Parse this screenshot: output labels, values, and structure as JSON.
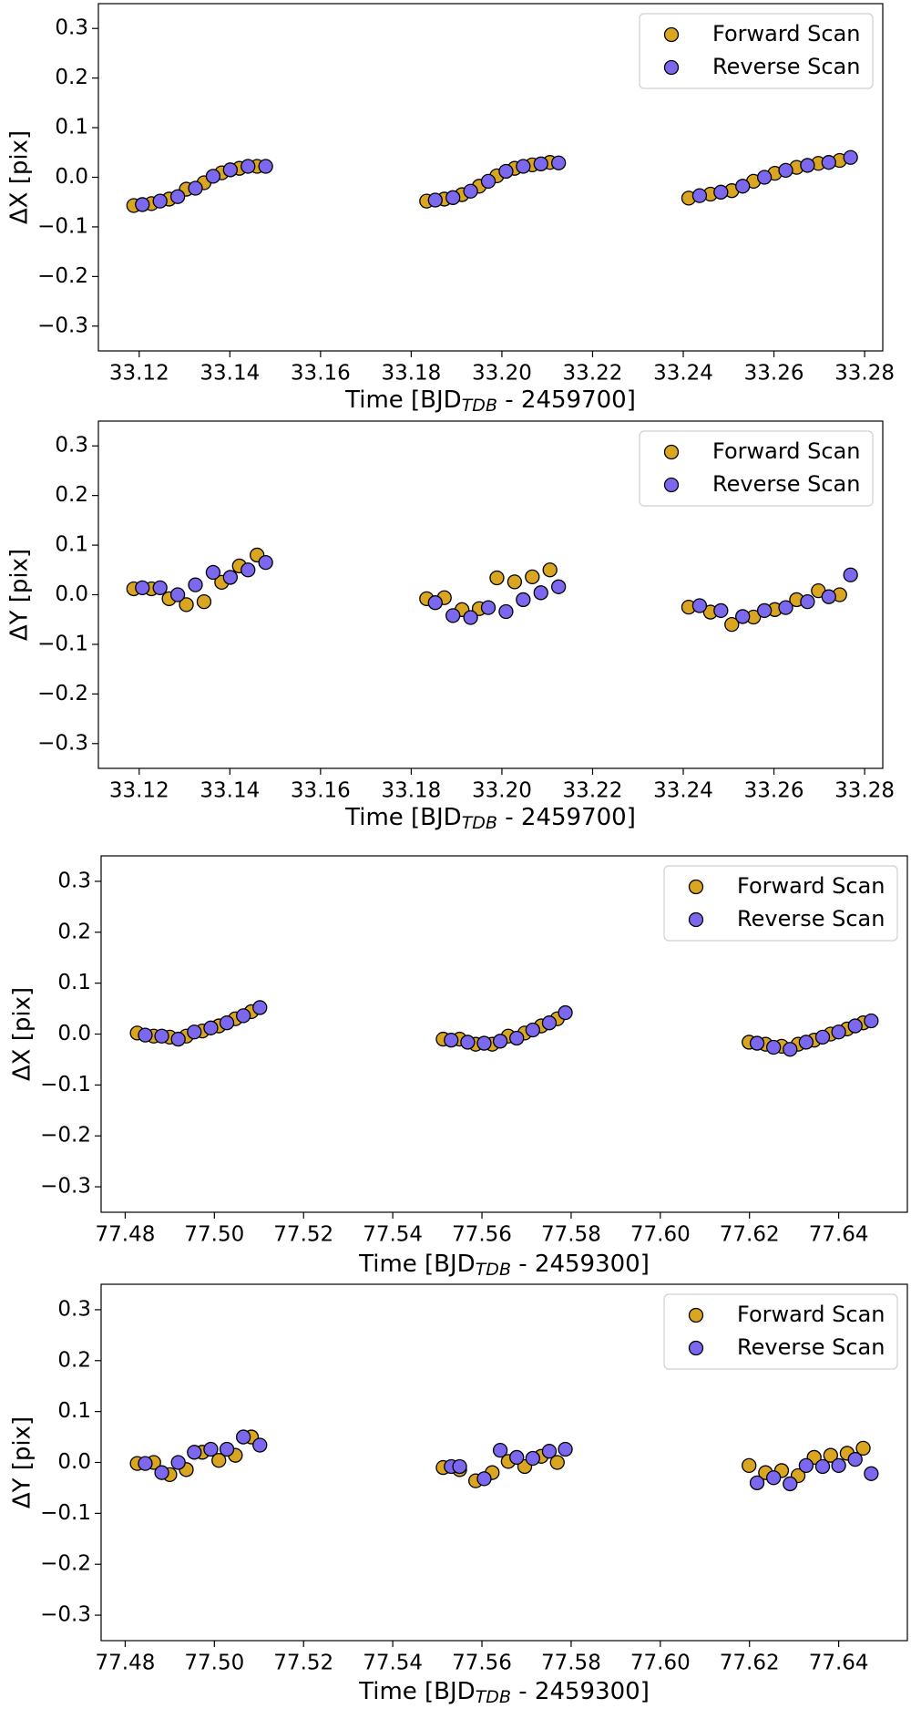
{
  "chart_data": [
    {
      "type": "scatter",
      "ylabel": "ΔX [pix]",
      "xlabel": {
        "text": "Time [BJD",
        "subscript": "TDB",
        "suffix": " - 2459700]"
      },
      "xlim": [
        33.111,
        33.284
      ],
      "ylim": [
        -0.35,
        0.35
      ],
      "xticks": [
        {
          "value": 33.12,
          "label": "33.12"
        },
        {
          "value": 33.14,
          "label": "33.14"
        },
        {
          "value": 33.16,
          "label": "33.16"
        },
        {
          "value": 33.18,
          "label": "33.18"
        },
        {
          "value": 33.2,
          "label": "33.20"
        },
        {
          "value": 33.22,
          "label": "33.22"
        },
        {
          "value": 33.24,
          "label": "33.24"
        },
        {
          "value": 33.26,
          "label": "33.26"
        },
        {
          "value": 33.28,
          "label": "33.28"
        }
      ],
      "yticks": [
        {
          "value": -0.3,
          "label": "−0.3"
        },
        {
          "value": -0.2,
          "label": "−0.2"
        },
        {
          "value": -0.1,
          "label": "−0.1"
        },
        {
          "value": 0,
          "label": "0.0"
        },
        {
          "value": 0.1,
          "label": "0.1"
        },
        {
          "value": 0.2,
          "label": "0.2"
        },
        {
          "value": 0.3,
          "label": "0.3"
        }
      ],
      "legend": "upper right",
      "series": [
        {
          "name": "Forward Scan",
          "color": "#daa520",
          "x": [
            33.1188,
            33.1227,
            33.1266,
            33.1304,
            33.1343,
            33.1382,
            33.1421,
            33.146,
            33.1834,
            33.1873,
            33.1912,
            33.195,
            33.1989,
            33.2028,
            33.2067,
            33.2106,
            33.2412,
            33.246,
            33.2507,
            33.2555,
            33.2602,
            33.265,
            33.2698,
            33.2745
          ],
          "values": [
            -0.057,
            -0.053,
            -0.044,
            -0.024,
            -0.011,
            0.009,
            0.018,
            0.022,
            -0.048,
            -0.044,
            -0.035,
            -0.018,
            0.003,
            0.018,
            0.025,
            0.03,
            -0.042,
            -0.034,
            -0.027,
            -0.008,
            0.008,
            0.02,
            0.028,
            0.034
          ]
        },
        {
          "name": "Reverse Scan",
          "color": "#7b68ee",
          "x": [
            33.1207,
            33.1246,
            33.1285,
            33.1324,
            33.1363,
            33.1401,
            33.144,
            33.1479,
            33.1853,
            33.1892,
            33.1931,
            33.197,
            33.2009,
            33.2047,
            33.2086,
            33.2125,
            33.2436,
            33.2483,
            33.2531,
            33.2579,
            33.2626,
            33.2674,
            33.2721,
            33.2769
          ],
          "values": [
            -0.055,
            -0.048,
            -0.039,
            -0.022,
            0.002,
            0.015,
            0.022,
            0.022,
            -0.046,
            -0.041,
            -0.028,
            -0.008,
            0.012,
            0.022,
            0.027,
            0.029,
            -0.037,
            -0.03,
            -0.018,
            0,
            0.014,
            0.024,
            0.03,
            0.04
          ]
        }
      ]
    },
    {
      "type": "scatter",
      "ylabel": "ΔY [pix]",
      "xlabel": {
        "text": "Time [BJD",
        "subscript": "TDB",
        "suffix": " - 2459700]"
      },
      "xlim": [
        33.111,
        33.284
      ],
      "ylim": [
        -0.35,
        0.35
      ],
      "xticks": [
        {
          "value": 33.12,
          "label": "33.12"
        },
        {
          "value": 33.14,
          "label": "33.14"
        },
        {
          "value": 33.16,
          "label": "33.16"
        },
        {
          "value": 33.18,
          "label": "33.18"
        },
        {
          "value": 33.2,
          "label": "33.20"
        },
        {
          "value": 33.22,
          "label": "33.22"
        },
        {
          "value": 33.24,
          "label": "33.24"
        },
        {
          "value": 33.26,
          "label": "33.26"
        },
        {
          "value": 33.28,
          "label": "33.28"
        }
      ],
      "yticks": [
        {
          "value": -0.3,
          "label": "−0.3"
        },
        {
          "value": -0.2,
          "label": "−0.2"
        },
        {
          "value": -0.1,
          "label": "−0.1"
        },
        {
          "value": 0,
          "label": "0.0"
        },
        {
          "value": 0.1,
          "label": "0.1"
        },
        {
          "value": 0.2,
          "label": "0.2"
        },
        {
          "value": 0.3,
          "label": "0.3"
        }
      ],
      "legend": "upper right",
      "series": [
        {
          "name": "Forward Scan",
          "color": "#daa520",
          "x": [
            33.1188,
            33.1227,
            33.1266,
            33.1304,
            33.1343,
            33.1382,
            33.1421,
            33.146,
            33.1834,
            33.1873,
            33.1912,
            33.195,
            33.1989,
            33.2028,
            33.2067,
            33.2106,
            33.2412,
            33.246,
            33.2507,
            33.2555,
            33.2602,
            33.265,
            33.2698,
            33.2745
          ],
          "values": [
            0.012,
            0.012,
            -0.008,
            -0.02,
            -0.014,
            0.025,
            0.058,
            0.08,
            -0.008,
            -0.006,
            -0.03,
            -0.028,
            0.034,
            0.026,
            0.036,
            0.05,
            -0.025,
            -0.035,
            -0.06,
            -0.045,
            -0.03,
            -0.01,
            0.008,
            0
          ]
        },
        {
          "name": "Reverse Scan",
          "color": "#7b68ee",
          "x": [
            33.1207,
            33.1246,
            33.1285,
            33.1324,
            33.1363,
            33.1401,
            33.144,
            33.1479,
            33.1853,
            33.1892,
            33.1931,
            33.197,
            33.2009,
            33.2047,
            33.2086,
            33.2125,
            33.2436,
            33.2483,
            33.2531,
            33.2579,
            33.2626,
            33.2674,
            33.2721,
            33.2769
          ],
          "values": [
            0.014,
            0.014,
            0,
            0.02,
            0.045,
            0.035,
            0.05,
            0.065,
            -0.016,
            -0.042,
            -0.046,
            -0.026,
            -0.034,
            -0.01,
            0.004,
            0.016,
            -0.022,
            -0.032,
            -0.044,
            -0.032,
            -0.026,
            -0.014,
            -0.004,
            0.04
          ]
        }
      ]
    },
    {
      "type": "scatter",
      "ylabel": "ΔX [pix]",
      "xlabel": {
        "text": "Time [BJD",
        "subscript": "TDB",
        "suffix": " - 2459300]"
      },
      "xlim": [
        77.4746,
        77.6554
      ],
      "ylim": [
        -0.35,
        0.35
      ],
      "xticks": [
        {
          "value": 77.48,
          "label": "77.48"
        },
        {
          "value": 77.5,
          "label": "77.50"
        },
        {
          "value": 77.52,
          "label": "77.52"
        },
        {
          "value": 77.54,
          "label": "77.54"
        },
        {
          "value": 77.56,
          "label": "77.56"
        },
        {
          "value": 77.58,
          "label": "77.58"
        },
        {
          "value": 77.6,
          "label": "77.60"
        },
        {
          "value": 77.62,
          "label": "77.62"
        },
        {
          "value": 77.64,
          "label": "77.64"
        }
      ],
      "yticks": [
        {
          "value": -0.3,
          "label": "−0.3"
        },
        {
          "value": -0.2,
          "label": "−0.2"
        },
        {
          "value": -0.1,
          "label": "−0.1"
        },
        {
          "value": 0,
          "label": "0.0"
        },
        {
          "value": 0.1,
          "label": "0.1"
        },
        {
          "value": 0.2,
          "label": "0.2"
        },
        {
          "value": 0.3,
          "label": "0.3"
        }
      ],
      "legend": "upper right",
      "series": [
        {
          "name": "Forward Scan",
          "color": "#daa520",
          "x": [
            77.4827,
            77.4864,
            77.49,
            77.4937,
            77.4973,
            77.501,
            77.5047,
            77.5083,
            77.5513,
            77.555,
            77.5586,
            77.5623,
            77.5659,
            77.5696,
            77.5733,
            77.5769,
            77.6199,
            77.6236,
            77.6272,
            77.6309,
            77.6345,
            77.6382,
            77.6419,
            77.6455
          ],
          "values": [
            0.002,
            -0.004,
            -0.006,
            -0.004,
            0.006,
            0.016,
            0.03,
            0.044,
            -0.01,
            -0.01,
            -0.02,
            -0.02,
            -0.004,
            0.002,
            0.016,
            0.03,
            -0.016,
            -0.02,
            -0.024,
            -0.02,
            -0.012,
            0,
            0.01,
            0.022
          ]
        },
        {
          "name": "Reverse Scan",
          "color": "#7b68ee",
          "x": [
            77.4845,
            77.4882,
            77.4919,
            77.4955,
            77.4992,
            77.5028,
            77.5065,
            77.5102,
            77.5531,
            77.5568,
            77.5605,
            77.5641,
            77.5678,
            77.5714,
            77.5751,
            77.5787,
            77.6217,
            77.6254,
            77.6291,
            77.6327,
            77.6364,
            77.64,
            77.6437,
            77.6473
          ],
          "values": [
            -0.002,
            -0.004,
            -0.01,
            0.004,
            0.012,
            0.022,
            0.036,
            0.052,
            -0.012,
            -0.016,
            -0.018,
            -0.014,
            -0.008,
            0.008,
            0.022,
            0.042,
            -0.018,
            -0.026,
            -0.03,
            -0.016,
            -0.006,
            0.004,
            0.016,
            0.026
          ]
        }
      ]
    },
    {
      "type": "scatter",
      "ylabel": "ΔY [pix]",
      "xlabel": {
        "text": "Time [BJD",
        "subscript": "TDB",
        "suffix": " - 2459300]"
      },
      "xlim": [
        77.4746,
        77.6554
      ],
      "ylim": [
        -0.35,
        0.35
      ],
      "xticks": [
        {
          "value": 77.48,
          "label": "77.48"
        },
        {
          "value": 77.5,
          "label": "77.50"
        },
        {
          "value": 77.52,
          "label": "77.52"
        },
        {
          "value": 77.54,
          "label": "77.54"
        },
        {
          "value": 77.56,
          "label": "77.56"
        },
        {
          "value": 77.58,
          "label": "77.58"
        },
        {
          "value": 77.6,
          "label": "77.60"
        },
        {
          "value": 77.62,
          "label": "77.62"
        },
        {
          "value": 77.64,
          "label": "77.64"
        }
      ],
      "yticks": [
        {
          "value": -0.3,
          "label": "−0.3"
        },
        {
          "value": -0.2,
          "label": "−0.2"
        },
        {
          "value": -0.1,
          "label": "−0.1"
        },
        {
          "value": 0,
          "label": "0.0"
        },
        {
          "value": 0.1,
          "label": "0.1"
        },
        {
          "value": 0.2,
          "label": "0.2"
        },
        {
          "value": 0.3,
          "label": "0.3"
        }
      ],
      "legend": "upper right",
      "series": [
        {
          "name": "Forward Scan",
          "color": "#daa520",
          "x": [
            77.4827,
            77.4864,
            77.49,
            77.4937,
            77.4973,
            77.501,
            77.5047,
            77.5083,
            77.5513,
            77.555,
            77.5586,
            77.5623,
            77.5659,
            77.5696,
            77.5733,
            77.5769,
            77.6199,
            77.6236,
            77.6272,
            77.6309,
            77.6345,
            77.6382,
            77.6419,
            77.6455
          ],
          "values": [
            -0.002,
            0,
            -0.024,
            -0.014,
            0.02,
            0.004,
            0.014,
            0.05,
            -0.01,
            -0.014,
            -0.036,
            -0.02,
            0.002,
            -0.008,
            0.012,
            0,
            -0.006,
            -0.02,
            -0.016,
            -0.026,
            0.01,
            0.014,
            0.018,
            0.028
          ]
        },
        {
          "name": "Reverse Scan",
          "color": "#7b68ee",
          "x": [
            77.4845,
            77.4882,
            77.4919,
            77.4955,
            77.4992,
            77.5028,
            77.5065,
            77.5102,
            77.5531,
            77.555,
            77.5605,
            77.5641,
            77.5678,
            77.5714,
            77.5751,
            77.5787,
            77.6217,
            77.6254,
            77.6291,
            77.6327,
            77.6364,
            77.64,
            77.6437,
            77.6473
          ],
          "values": [
            -0.002,
            -0.02,
            0,
            0.02,
            0.026,
            0.026,
            0.05,
            0.034,
            -0.008,
            -0.008,
            -0.032,
            0.024,
            0.01,
            0.008,
            0.022,
            0.026,
            -0.04,
            -0.03,
            -0.042,
            -0.006,
            -0.008,
            -0.006,
            0.006,
            -0.022
          ]
        }
      ]
    }
  ]
}
